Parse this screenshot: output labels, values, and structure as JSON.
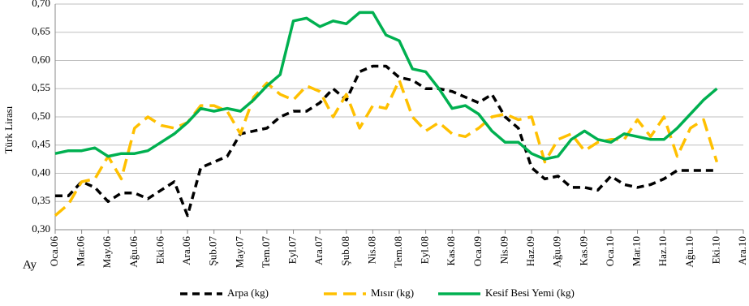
{
  "chart_data": {
    "type": "line",
    "y_label": "Türk Lirası",
    "x_label": "Ay",
    "categories": [
      "Oca.06",
      null,
      "Mar.06",
      null,
      "May.06",
      null,
      "Ağu.06",
      null,
      "Eki.06",
      null,
      "Ara.06",
      null,
      "Şub.07",
      null,
      "May.07",
      null,
      "Tem.07",
      null,
      "Eyl.07",
      null,
      "Ara.07",
      null,
      "Şub.08",
      null,
      "Nis.08",
      null,
      "Tem.08",
      null,
      "Eyl.08",
      null,
      "Kas.08",
      null,
      "Oca.09",
      null,
      "Nis.09",
      null,
      "Haz.09",
      null,
      "Ağu.09",
      null,
      "Kas.09",
      null,
      "Oca.10",
      null,
      "Mar.10",
      null,
      "Haz.10",
      null,
      "Ağu.10",
      null,
      "Eki.10",
      null,
      "Ara.10"
    ],
    "series": [
      {
        "name": "Arpa (kg)",
        "color": "#000000",
        "dash": "9,6",
        "values": [
          0.36,
          0.36,
          0.385,
          0.375,
          0.35,
          0.365,
          0.365,
          0.355,
          0.37,
          0.385,
          0.325,
          0.41,
          0.42,
          0.43,
          0.47,
          0.475,
          0.48,
          0.5,
          0.51,
          0.51,
          0.525,
          0.55,
          0.53,
          0.58,
          0.59,
          0.59,
          0.57,
          0.565,
          0.55,
          0.55,
          0.545,
          0.535,
          0.525,
          0.54,
          0.5,
          0.48,
          0.41,
          0.39,
          0.395,
          0.375,
          0.375,
          0.37,
          0.395,
          0.38,
          0.375,
          0.38,
          0.39,
          0.405,
          0.405,
          0.405,
          0.405,
          null,
          null
        ]
      },
      {
        "name": "Mısır (kg)",
        "color": "#FFC000",
        "dash": "16,8",
        "values": [
          0.325,
          0.345,
          0.385,
          0.39,
          0.43,
          0.39,
          0.48,
          0.5,
          0.485,
          0.48,
          0.49,
          0.52,
          0.52,
          0.51,
          0.47,
          0.535,
          0.56,
          0.54,
          0.53,
          0.555,
          0.545,
          0.5,
          0.54,
          0.48,
          0.52,
          0.515,
          0.565,
          0.5,
          0.475,
          0.49,
          0.47,
          0.465,
          0.48,
          0.5,
          0.505,
          0.495,
          0.5,
          0.42,
          0.46,
          0.47,
          0.44,
          0.455,
          0.46,
          0.46,
          0.495,
          0.465,
          0.5,
          0.43,
          0.48,
          0.495,
          0.42,
          null,
          null
        ]
      },
      {
        "name": "Kesif Besi Yemi (kg)",
        "color": "#00B050",
        "dash": "none",
        "values": [
          0.435,
          0.44,
          0.44,
          0.445,
          0.43,
          0.435,
          0.435,
          0.44,
          0.455,
          0.47,
          0.49,
          0.515,
          0.51,
          0.515,
          0.51,
          0.53,
          0.555,
          0.575,
          0.67,
          0.675,
          0.66,
          0.67,
          0.665,
          0.685,
          0.685,
          0.645,
          0.635,
          0.585,
          0.58,
          0.55,
          0.515,
          0.52,
          0.505,
          0.475,
          0.455,
          0.455,
          0.435,
          0.425,
          0.43,
          0.46,
          0.475,
          0.46,
          0.455,
          0.47,
          0.465,
          0.46,
          0.46,
          0.48,
          0.505,
          0.53,
          0.55,
          null,
          null
        ]
      }
    ],
    "ylim": [
      0.3,
      0.7
    ],
    "yticks": [
      {
        "value": 0.3,
        "label": "0,30"
      },
      {
        "value": 0.35,
        "label": "0,35"
      },
      {
        "value": 0.4,
        "label": "0,40"
      },
      {
        "value": 0.45,
        "label": "0,45"
      },
      {
        "value": 0.5,
        "label": "0,50"
      },
      {
        "value": 0.55,
        "label": "0,55"
      },
      {
        "value": 0.6,
        "label": "0,60"
      },
      {
        "value": 0.65,
        "label": "0,65"
      },
      {
        "value": 0.7,
        "label": "0,70"
      }
    ],
    "grid": true
  }
}
